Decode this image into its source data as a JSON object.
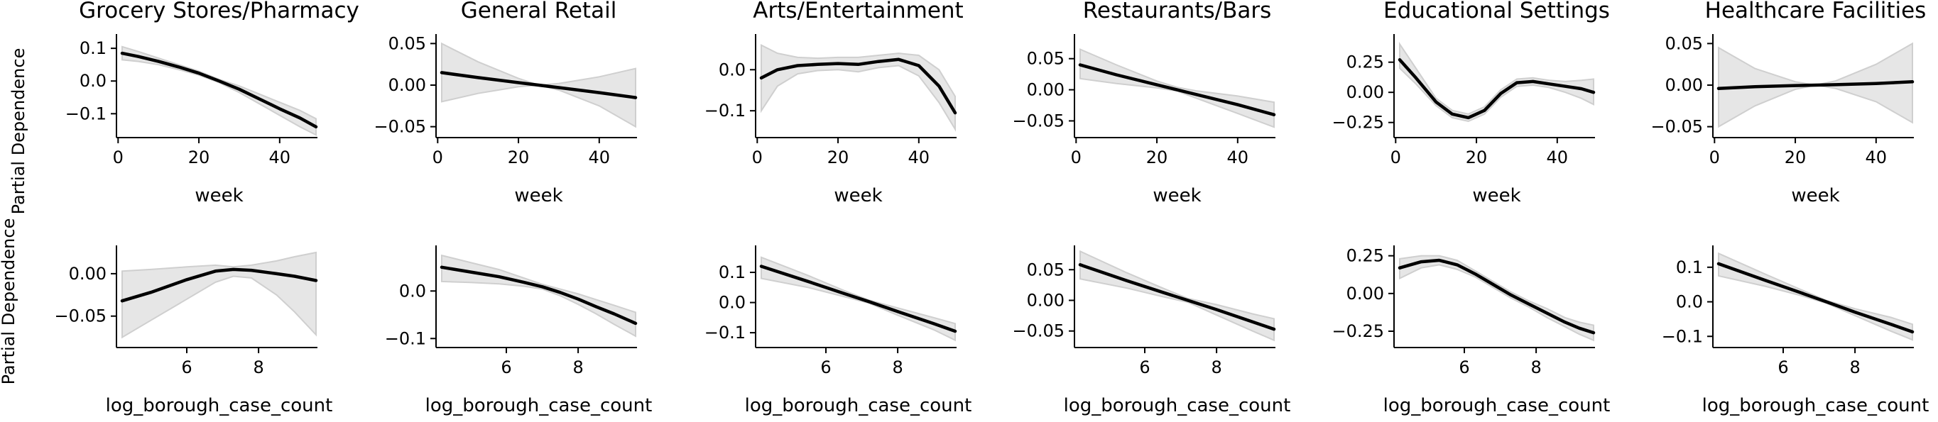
{
  "ylabel": "Partial Dependence",
  "chart_data": [
    {
      "type": "line",
      "row": 0,
      "col": 0,
      "title": "Grocery Stores/Pharmacy",
      "xlabel": "week",
      "xlim": [
        1,
        49
      ],
      "ylim": [
        -0.16,
        0.135
      ],
      "xticks": [
        0,
        20,
        40
      ],
      "yticks": [
        0.1,
        0.0,
        -0.1
      ],
      "ytick_labels": [
        "0.1",
        "0.0",
        "−0.1"
      ],
      "x": [
        1,
        5,
        10,
        15,
        20,
        25,
        30,
        35,
        40,
        45,
        49
      ],
      "y": [
        0.085,
        0.075,
        0.06,
        0.043,
        0.024,
        0.0,
        -0.025,
        -0.055,
        -0.085,
        -0.113,
        -0.14
      ],
      "lower": [
        0.065,
        0.06,
        0.05,
        0.035,
        0.018,
        -0.005,
        -0.035,
        -0.07,
        -0.105,
        -0.14,
        -0.165
      ],
      "upper": [
        0.105,
        0.09,
        0.07,
        0.05,
        0.03,
        0.005,
        -0.015,
        -0.04,
        -0.065,
        -0.09,
        -0.115
      ]
    },
    {
      "type": "line",
      "row": 0,
      "col": 1,
      "title": "General Retail",
      "xlabel": "week",
      "xlim": [
        1,
        49
      ],
      "ylim": [
        -0.058,
        0.058
      ],
      "xticks": [
        0,
        20,
        40
      ],
      "yticks": [
        0.05,
        0.0,
        -0.05
      ],
      "ytick_labels": [
        "0.05",
        "0.00",
        "−0.05"
      ],
      "x": [
        1,
        10,
        20,
        25,
        30,
        40,
        49
      ],
      "y": [
        0.015,
        0.009,
        0.003,
        0.0,
        -0.003,
        -0.009,
        -0.015
      ],
      "lower": [
        -0.02,
        -0.01,
        -0.002,
        0.0,
        -0.006,
        -0.025,
        -0.05
      ],
      "upper": [
        0.05,
        0.028,
        0.008,
        0.0,
        0.002,
        0.01,
        0.02
      ]
    },
    {
      "type": "line",
      "row": 0,
      "col": 2,
      "title": "Arts/Entertainment",
      "xlabel": "week",
      "xlim": [
        1,
        49
      ],
      "ylim": [
        -0.155,
        0.08
      ],
      "xticks": [
        0,
        20,
        40
      ],
      "yticks": [
        0.0,
        -0.1
      ],
      "ytick_labels": [
        "0.0",
        "−0.1"
      ],
      "x": [
        1,
        5,
        10,
        15,
        20,
        25,
        30,
        35,
        40,
        45,
        49
      ],
      "y": [
        -0.02,
        0.0,
        0.01,
        0.013,
        0.015,
        0.013,
        0.02,
        0.025,
        0.01,
        -0.04,
        -0.105
      ],
      "lower": [
        -0.1,
        -0.04,
        -0.01,
        -0.002,
        0.0,
        -0.005,
        0.005,
        0.01,
        -0.015,
        -0.08,
        -0.145
      ],
      "upper": [
        0.06,
        0.04,
        0.03,
        0.028,
        0.03,
        0.03,
        0.035,
        0.04,
        0.035,
        0.0,
        -0.065
      ]
    },
    {
      "type": "line",
      "row": 0,
      "col": 3,
      "title": "Restaurants/Bars",
      "xlabel": "week",
      "xlim": [
        1,
        49
      ],
      "ylim": [
        -0.07,
        0.085
      ],
      "xticks": [
        0,
        20,
        40
      ],
      "yticks": [
        0.05,
        0.0,
        -0.05
      ],
      "ytick_labels": [
        "0.05",
        "0.00",
        "−0.05"
      ],
      "x": [
        1,
        10,
        20,
        25,
        30,
        40,
        49
      ],
      "y": [
        0.04,
        0.024,
        0.008,
        0.0,
        -0.008,
        -0.024,
        -0.04
      ],
      "lower": [
        0.018,
        0.01,
        0.003,
        -0.002,
        -0.014,
        -0.038,
        -0.06
      ],
      "upper": [
        0.065,
        0.04,
        0.014,
        0.004,
        -0.002,
        -0.01,
        -0.02
      ]
    },
    {
      "type": "line",
      "row": 0,
      "col": 4,
      "title": "Educational Settings",
      "xlabel": "week",
      "xlim": [
        1,
        49
      ],
      "ylim": [
        -0.34,
        0.46
      ],
      "xticks": [
        0,
        20,
        40
      ],
      "yticks": [
        0.25,
        0.0,
        -0.25
      ],
      "ytick_labels": [
        "0.25",
        "0.00",
        "−0.25"
      ],
      "x": [
        1,
        5,
        10,
        14,
        18,
        22,
        26,
        30,
        34,
        38,
        42,
        46,
        49
      ],
      "y": [
        0.27,
        0.12,
        -0.08,
        -0.18,
        -0.21,
        -0.15,
        -0.01,
        0.08,
        0.09,
        0.07,
        0.05,
        0.03,
        0.0
      ],
      "lower": [
        0.2,
        0.07,
        -0.11,
        -0.21,
        -0.24,
        -0.18,
        -0.04,
        0.05,
        0.06,
        0.04,
        0.0,
        -0.05,
        -0.1
      ],
      "upper": [
        0.4,
        0.2,
        -0.05,
        -0.15,
        -0.18,
        -0.12,
        0.02,
        0.11,
        0.12,
        0.1,
        0.09,
        0.1,
        0.11
      ]
    },
    {
      "type": "line",
      "row": 0,
      "col": 5,
      "title": "Healthcare Facilities",
      "xlabel": "week",
      "xlim": [
        1,
        49
      ],
      "ylim": [
        -0.058,
        0.058
      ],
      "xticks": [
        0,
        20,
        40
      ],
      "yticks": [
        0.05,
        0.0,
        -0.05
      ],
      "ytick_labels": [
        "0.05",
        "0.00",
        "−0.05"
      ],
      "x": [
        1,
        10,
        20,
        25,
        30,
        40,
        49
      ],
      "y": [
        -0.004,
        -0.002,
        -0.0005,
        0.0,
        0.0005,
        0.002,
        0.004
      ],
      "lower": [
        -0.05,
        -0.025,
        -0.005,
        0.0,
        -0.004,
        -0.02,
        -0.045
      ],
      "upper": [
        0.045,
        0.02,
        0.004,
        0.0,
        0.005,
        0.025,
        0.05
      ]
    },
    {
      "type": "line",
      "row": 1,
      "col": 0,
      "title": "",
      "xlabel": "log_borough_case_count",
      "xlim": [
        4.2,
        9.6
      ],
      "ylim": [
        -0.082,
        0.03
      ],
      "xticks": [
        6,
        8
      ],
      "yticks": [
        0.0,
        -0.05
      ],
      "ytick_labels": [
        "0.00",
        "−0.05"
      ],
      "x": [
        4.2,
        5.0,
        6.0,
        6.8,
        7.3,
        7.8,
        8.5,
        9.0,
        9.6
      ],
      "y": [
        -0.032,
        -0.022,
        -0.007,
        0.003,
        0.005,
        0.004,
        0.0,
        -0.003,
        -0.008
      ],
      "lower": [
        -0.075,
        -0.055,
        -0.03,
        -0.01,
        -0.003,
        -0.005,
        -0.025,
        -0.045,
        -0.072
      ],
      "upper": [
        0.003,
        0.005,
        0.008,
        0.01,
        0.008,
        0.01,
        0.015,
        0.02,
        0.025
      ]
    },
    {
      "type": "line",
      "row": 1,
      "col": 1,
      "title": "",
      "xlabel": "log_borough_case_count",
      "xlim": [
        4.2,
        9.6
      ],
      "ylim": [
        -0.11,
        0.09
      ],
      "xticks": [
        6,
        8
      ],
      "yticks": [
        0.0,
        -0.1
      ],
      "ytick_labels": [
        "0.0",
        "−0.1"
      ],
      "x": [
        4.2,
        5.0,
        5.8,
        6.5,
        7.0,
        7.5,
        8.0,
        8.5,
        9.0,
        9.6
      ],
      "y": [
        0.05,
        0.04,
        0.03,
        0.018,
        0.009,
        -0.003,
        -0.017,
        -0.033,
        -0.048,
        -0.068
      ],
      "lower": [
        0.02,
        0.018,
        0.015,
        0.01,
        0.004,
        -0.01,
        -0.028,
        -0.048,
        -0.07,
        -0.095
      ],
      "upper": [
        0.075,
        0.06,
        0.045,
        0.027,
        0.014,
        0.004,
        -0.006,
        -0.018,
        -0.03,
        -0.045
      ]
    },
    {
      "type": "line",
      "row": 1,
      "col": 2,
      "title": "",
      "xlabel": "log_borough_case_count",
      "xlim": [
        4.2,
        9.6
      ],
      "ylim": [
        -0.135,
        0.18
      ],
      "xticks": [
        6,
        8
      ],
      "yticks": [
        0.1,
        0.0,
        -0.1
      ],
      "ytick_labels": [
        "0.1",
        "0.0",
        "−0.1"
      ],
      "x": [
        4.2,
        5.5,
        6.5,
        7.2,
        8.0,
        9.0,
        9.6
      ],
      "y": [
        0.12,
        0.07,
        0.03,
        0.003,
        -0.03,
        -0.07,
        -0.095
      ],
      "lower": [
        0.08,
        0.05,
        0.02,
        -0.002,
        -0.042,
        -0.09,
        -0.125
      ],
      "upper": [
        0.15,
        0.09,
        0.04,
        0.008,
        -0.018,
        -0.05,
        -0.07
      ]
    },
    {
      "type": "line",
      "row": 1,
      "col": 3,
      "title": "",
      "xlabel": "log_borough_case_count",
      "xlim": [
        4.2,
        9.6
      ],
      "ylim": [
        -0.07,
        0.085
      ],
      "xticks": [
        6,
        8
      ],
      "yticks": [
        0.05,
        0.0,
        -0.05
      ],
      "ytick_labels": [
        "0.05",
        "0.00",
        "−0.05"
      ],
      "x": [
        4.2,
        5.5,
        6.5,
        7.2,
        8.0,
        9.0,
        9.6
      ],
      "y": [
        0.058,
        0.032,
        0.013,
        0.0,
        -0.015,
        -0.035,
        -0.047
      ],
      "lower": [
        0.035,
        0.02,
        0.006,
        -0.003,
        -0.024,
        -0.05,
        -0.065
      ],
      "upper": [
        0.08,
        0.045,
        0.02,
        0.003,
        -0.007,
        -0.022,
        -0.03
      ]
    },
    {
      "type": "line",
      "row": 1,
      "col": 4,
      "title": "",
      "xlabel": "log_borough_case_count",
      "xlim": [
        4.2,
        9.6
      ],
      "ylim": [
        -0.33,
        0.3
      ],
      "xticks": [
        6,
        8
      ],
      "yticks": [
        0.25,
        0.0,
        -0.25
      ],
      "ytick_labels": [
        "0.25",
        "0.00",
        "−0.25"
      ],
      "x": [
        4.2,
        4.8,
        5.3,
        5.8,
        6.3,
        6.8,
        7.3,
        7.8,
        8.3,
        8.8,
        9.2,
        9.6
      ],
      "y": [
        0.17,
        0.21,
        0.22,
        0.19,
        0.13,
        0.06,
        -0.01,
        -0.07,
        -0.13,
        -0.19,
        -0.23,
        -0.26
      ],
      "lower": [
        0.1,
        0.17,
        0.19,
        0.16,
        0.11,
        0.04,
        -0.03,
        -0.09,
        -0.16,
        -0.22,
        -0.27,
        -0.31
      ],
      "upper": [
        0.23,
        0.25,
        0.25,
        0.22,
        0.15,
        0.08,
        0.01,
        -0.05,
        -0.1,
        -0.16,
        -0.19,
        -0.21
      ]
    },
    {
      "type": "line",
      "row": 1,
      "col": 5,
      "title": "",
      "xlabel": "log_borough_case_count",
      "xlim": [
        4.2,
        9.6
      ],
      "ylim": [
        -0.12,
        0.155
      ],
      "xticks": [
        6,
        8
      ],
      "yticks": [
        0.1,
        0.0,
        -0.1
      ],
      "ytick_labels": [
        "0.1",
        "0.0",
        "−0.1"
      ],
      "x": [
        4.2,
        5.5,
        6.5,
        7.2,
        8.0,
        9.0,
        9.6
      ],
      "y": [
        0.11,
        0.062,
        0.026,
        0.0,
        -0.03,
        -0.065,
        -0.087
      ],
      "lower": [
        0.075,
        0.045,
        0.018,
        -0.004,
        -0.04,
        -0.085,
        -0.11
      ],
      "upper": [
        0.14,
        0.08,
        0.035,
        0.004,
        -0.02,
        -0.045,
        -0.065
      ]
    }
  ]
}
